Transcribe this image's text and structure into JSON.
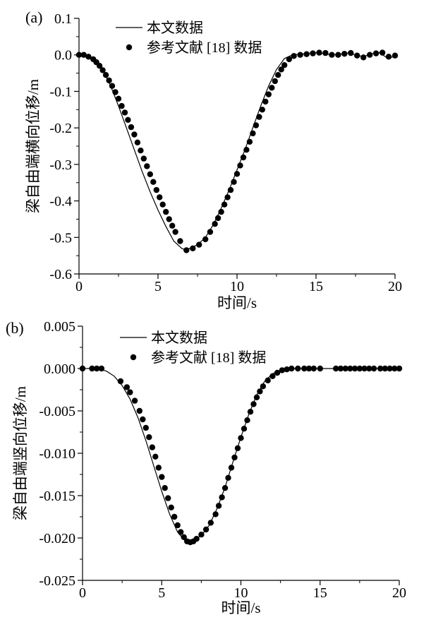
{
  "chart_data": [
    {
      "type": "line",
      "panel_label": "(a)",
      "xlabel": "时间/s",
      "ylabel": "梁自由端横向位移/m",
      "xlim": [
        0,
        20
      ],
      "ylim": [
        -0.6,
        0.1
      ],
      "x_ticks": [
        0,
        5,
        10,
        15,
        20
      ],
      "y_ticks": [
        "0.1",
        "0.0",
        "-0.1",
        "-0.2",
        "-0.3",
        "-0.4",
        "-0.5",
        "-0.6"
      ],
      "legend": [
        {
          "label": "本文数据",
          "style": "line"
        },
        {
          "label": "参考文献 [18] 数据",
          "style": "marker"
        }
      ],
      "legend_position": "top-left",
      "grid": false,
      "series": [
        {
          "name": "本文数据",
          "kind": "line",
          "color": "#000000",
          "x": [
            0,
            0.5,
            1.0,
            1.5,
            2.0,
            2.5,
            3.0,
            3.5,
            4.0,
            4.5,
            5.0,
            5.5,
            6.0,
            6.5,
            6.8,
            7.0,
            7.5,
            8.0,
            8.5,
            9.0,
            9.5,
            10.0,
            10.5,
            11.0,
            11.5,
            12.0,
            12.5,
            13.0,
            13.5,
            14.0,
            14.5,
            15.0,
            15.5,
            16.0,
            16.5,
            17.0,
            17.5,
            18.0,
            18.5,
            19.0,
            19.5,
            20.0
          ],
          "y": [
            0.0,
            -0.002,
            -0.015,
            -0.04,
            -0.085,
            -0.14,
            -0.2,
            -0.26,
            -0.32,
            -0.375,
            -0.425,
            -0.47,
            -0.51,
            -0.53,
            -0.535,
            -0.53,
            -0.52,
            -0.5,
            -0.465,
            -0.42,
            -0.37,
            -0.315,
            -0.26,
            -0.2,
            -0.14,
            -0.085,
            -0.04,
            -0.01,
            0.0,
            0.002,
            0.004,
            0.006,
            0.003,
            0.0,
            0.002,
            0.005,
            0.0,
            -0.005,
            0.003,
            0.006,
            -0.008,
            -0.005
          ]
        },
        {
          "name": "参考文献 [18] 数据",
          "kind": "scatter",
          "color": "#000000",
          "x": [
            0,
            0.3,
            0.6,
            0.9,
            1.1,
            1.3,
            1.5,
            1.7,
            1.9,
            2.1,
            2.3,
            2.5,
            2.7,
            2.9,
            3.1,
            3.3,
            3.5,
            3.7,
            3.9,
            4.1,
            4.3,
            4.5,
            4.7,
            4.9,
            5.1,
            5.3,
            5.5,
            5.7,
            5.9,
            6.1,
            6.4,
            6.8,
            7.2,
            7.6,
            8.0,
            8.3,
            8.6,
            8.8,
            9.0,
            9.2,
            9.4,
            9.6,
            9.8,
            10.0,
            10.2,
            10.4,
            10.6,
            10.8,
            11.0,
            11.2,
            11.4,
            11.6,
            11.8,
            12.0,
            12.2,
            12.4,
            12.6,
            12.8,
            13.0,
            13.3,
            13.6,
            14.0,
            14.4,
            14.8,
            15.2,
            15.6,
            16.0,
            16.4,
            16.8,
            17.2,
            17.6,
            18.0,
            18.4,
            18.8,
            19.2,
            19.6,
            20.0
          ],
          "y": [
            0.0,
            0.0,
            -0.005,
            -0.012,
            -0.02,
            -0.03,
            -0.042,
            -0.055,
            -0.07,
            -0.085,
            -0.102,
            -0.12,
            -0.14,
            -0.158,
            -0.178,
            -0.198,
            -0.218,
            -0.24,
            -0.262,
            -0.284,
            -0.305,
            -0.327,
            -0.348,
            -0.37,
            -0.39,
            -0.41,
            -0.43,
            -0.45,
            -0.468,
            -0.485,
            -0.51,
            -0.535,
            -0.53,
            -0.52,
            -0.505,
            -0.485,
            -0.463,
            -0.447,
            -0.43,
            -0.41,
            -0.39,
            -0.37,
            -0.348,
            -0.326,
            -0.303,
            -0.281,
            -0.26,
            -0.238,
            -0.215,
            -0.193,
            -0.17,
            -0.15,
            -0.128,
            -0.108,
            -0.09,
            -0.072,
            -0.055,
            -0.04,
            -0.028,
            -0.012,
            -0.003,
            0.0,
            0.002,
            0.004,
            0.006,
            0.005,
            0.0,
            0.0,
            0.003,
            0.005,
            -0.002,
            -0.007,
            0.0,
            0.004,
            0.006,
            -0.005,
            -0.002
          ]
        }
      ]
    },
    {
      "type": "line",
      "panel_label": "(b)",
      "xlabel": "时间/s",
      "ylabel": "梁自由端竖向位移/m",
      "xlim": [
        0,
        20
      ],
      "ylim": [
        -0.025,
        0.005
      ],
      "x_ticks": [
        0,
        5,
        10,
        15,
        20
      ],
      "y_ticks": [
        "0.005",
        "0.000",
        "-0.005",
        "-0.010",
        "-0.015",
        "-0.020",
        "-0.025"
      ],
      "legend": [
        {
          "label": "本文数据",
          "style": "line"
        },
        {
          "label": "参考文献 [18] 数据",
          "style": "marker"
        }
      ],
      "legend_position": "top-left",
      "grid": false,
      "series": [
        {
          "name": "本文数据",
          "kind": "line",
          "color": "#000000",
          "x": [
            0,
            0.5,
            1.0,
            1.5,
            2.0,
            2.5,
            3.0,
            3.5,
            4.0,
            4.5,
            5.0,
            5.5,
            6.0,
            6.5,
            6.8,
            7.0,
            7.5,
            8.0,
            8.5,
            9.0,
            9.5,
            10.0,
            10.5,
            11.0,
            11.5,
            12.0,
            12.5,
            13.0,
            13.5,
            14.0,
            15.0,
            16.0,
            17.0,
            18.0,
            19.0,
            20.0
          ],
          "y": [
            0.0,
            0.0,
            -5e-05,
            -0.0003,
            -0.0009,
            -0.002,
            -0.0036,
            -0.0058,
            -0.0085,
            -0.0115,
            -0.0145,
            -0.0172,
            -0.0193,
            -0.0204,
            -0.0205,
            -0.0203,
            -0.0197,
            -0.0185,
            -0.0165,
            -0.014,
            -0.011,
            -0.0081,
            -0.0054,
            -0.0031,
            -0.0015,
            -0.0006,
            -0.0002,
            -5e-05,
            0.0,
            0.0,
            0.0,
            0.0,
            0.0,
            0.0,
            0.0,
            0.0
          ]
        },
        {
          "name": "参考文献 [18] 数据",
          "kind": "scatter",
          "color": "#000000",
          "x": [
            0,
            0.6,
            0.9,
            1.2,
            2.4,
            2.8,
            3.0,
            3.3,
            3.6,
            3.8,
            4.0,
            4.2,
            4.4,
            4.6,
            4.8,
            5.0,
            5.2,
            5.4,
            5.6,
            5.8,
            6.0,
            6.2,
            6.4,
            6.6,
            6.8,
            7.0,
            7.2,
            7.5,
            7.8,
            8.1,
            8.4,
            8.6,
            8.8,
            9.0,
            9.2,
            9.4,
            9.6,
            9.8,
            10.0,
            10.2,
            10.4,
            10.6,
            10.8,
            11.0,
            11.2,
            11.4,
            11.7,
            12.0,
            12.3,
            12.6,
            12.9,
            13.2,
            13.6,
            14.0,
            14.3,
            14.6,
            15.0,
            16.0,
            16.3,
            16.6,
            16.9,
            17.2,
            17.5,
            17.8,
            18.1,
            18.4,
            18.8,
            19.1,
            19.4,
            19.7,
            20.0
          ],
          "y": [
            0.0,
            0.0,
            0.0,
            0.0,
            -0.0015,
            -0.0022,
            -0.0028,
            -0.0038,
            -0.005,
            -0.006,
            -0.007,
            -0.0081,
            -0.0093,
            -0.0104,
            -0.0117,
            -0.0128,
            -0.0141,
            -0.0153,
            -0.0164,
            -0.0175,
            -0.0185,
            -0.0193,
            -0.0199,
            -0.0204,
            -0.0205,
            -0.0204,
            -0.0201,
            -0.0196,
            -0.019,
            -0.0182,
            -0.0172,
            -0.0162,
            -0.0152,
            -0.0141,
            -0.0129,
            -0.0117,
            -0.0105,
            -0.0094,
            -0.0082,
            -0.0071,
            -0.0061,
            -0.0051,
            -0.0042,
            -0.0034,
            -0.0027,
            -0.0021,
            -0.0014,
            -0.0009,
            -0.0005,
            -0.0002,
            -0.0001,
            0.0,
            0.0,
            0.0,
            0.0,
            0.0,
            0.0,
            0.0,
            0.0,
            0.0,
            0.0,
            0.0,
            0.0,
            0.0,
            0.0,
            0.0,
            0.0,
            0.0,
            0.0,
            0.0,
            0.0
          ]
        }
      ]
    }
  ]
}
